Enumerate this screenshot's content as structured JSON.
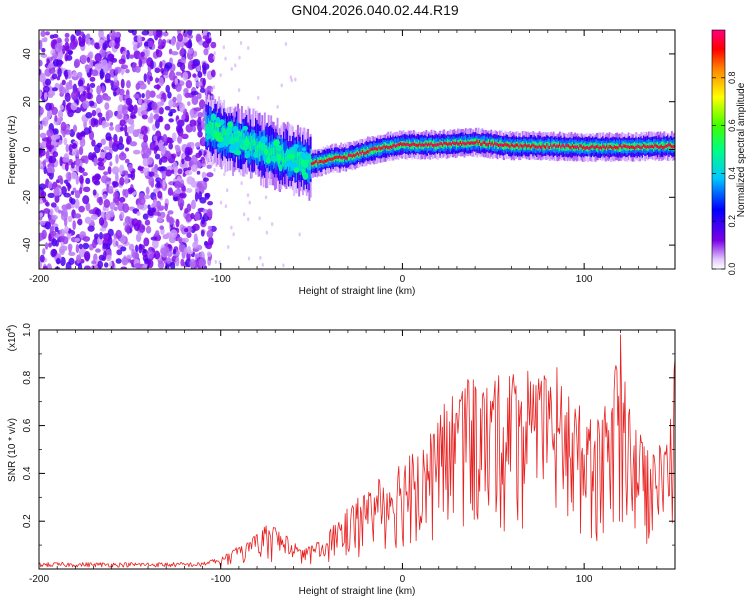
{
  "title": "GN04.2026.040.02.44.R19",
  "chart_data": [
    {
      "type": "heatmap",
      "xlabel": "Height of straight line (km)",
      "ylabel": "Frequency (Hz)",
      "xlim": [
        -200,
        150
      ],
      "ylim": [
        -50,
        50
      ],
      "xticks": [
        -200,
        -100,
        0,
        100
      ],
      "yticks": [
        -40,
        -20,
        0,
        20,
        40
      ],
      "colorbar": {
        "label": "Normalized spectral amplitude",
        "range": [
          0,
          1
        ],
        "ticks": [
          "0.0",
          "0.2",
          "0.4",
          "0.6",
          "0.8"
        ],
        "tick_values": [
          0,
          0.2,
          0.4,
          0.6,
          0.8
        ],
        "colormap": [
          "#ffffff",
          "#e3c8ff",
          "#7a00e6",
          "#0000ff",
          "#00c8ff",
          "#00ff80",
          "#40ff00",
          "#ffff00",
          "#ff8000",
          "#ff0000",
          "#ff0080"
        ]
      },
      "ridge": {
        "x": [
          -108,
          -100,
          -90,
          -80,
          -70,
          -60,
          -50,
          -40,
          -30,
          -20,
          -10,
          0,
          20,
          40,
          60,
          80,
          100,
          120,
          150
        ],
        "y": [
          10,
          6,
          4,
          1,
          -2,
          -4,
          -6,
          -4,
          -3,
          -1,
          1,
          2,
          2,
          3,
          1.5,
          1.5,
          1,
          1,
          1.5
        ]
      },
      "noise_region_x": [
        -200,
        -108
      ],
      "grid": false
    },
    {
      "type": "line",
      "xlabel": "Height of straight line (km)",
      "ylabel": "SNR (10 * v/v)",
      "multiplier_label": "(x10",
      "multiplier_exp": "4",
      "multiplier_close": ")",
      "xlim": [
        -200,
        150
      ],
      "ylim": [
        0,
        1.0
      ],
      "xticks": [
        -200,
        -100,
        0,
        100
      ],
      "yticks": [
        "0.2",
        "0.4",
        "0.6",
        "0.8",
        "1.0"
      ],
      "ytick_values": [
        0.2,
        0.4,
        0.6,
        0.8,
        1.0
      ],
      "color": "#e82020",
      "envelope": {
        "x": [
          -200,
          -115,
          -100,
          -85,
          -72,
          -65,
          -55,
          -45,
          -35,
          -25,
          -15,
          -5,
          5,
          15,
          25,
          35,
          45,
          55,
          65,
          75,
          85,
          95,
          105,
          115,
          120,
          125,
          135,
          145,
          150
        ],
        "y": [
          0.02,
          0.02,
          0.05,
          0.12,
          0.2,
          0.15,
          0.08,
          0.12,
          0.22,
          0.3,
          0.36,
          0.46,
          0.5,
          0.56,
          0.74,
          0.8,
          0.78,
          0.82,
          0.86,
          0.8,
          0.85,
          0.72,
          0.62,
          0.72,
          1.0,
          0.68,
          0.5,
          0.55,
          0.88
        ]
      },
      "grid": false
    }
  ]
}
